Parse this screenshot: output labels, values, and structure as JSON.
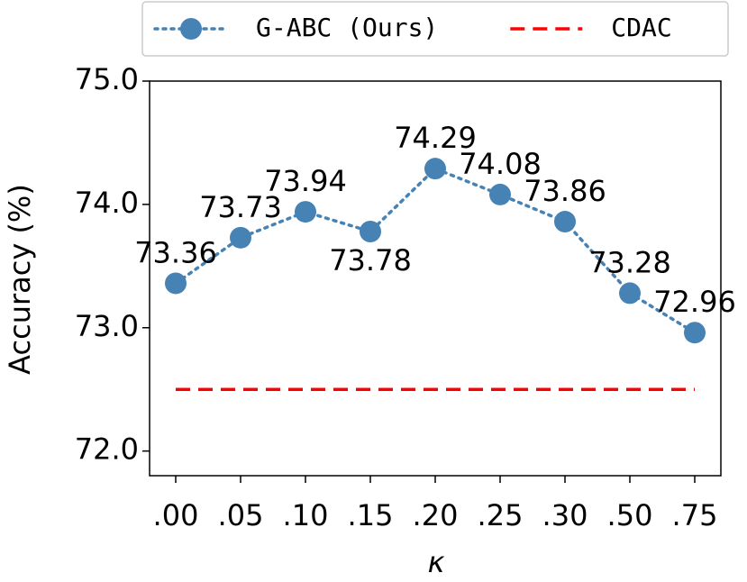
{
  "chart_data": {
    "type": "line",
    "xlabel": "κ",
    "ylabel": "Accuracy (%)",
    "categories": [
      ".00",
      ".05",
      ".10",
      ".15",
      ".20",
      ".25",
      ".30",
      ".50",
      ".75"
    ],
    "series": [
      {
        "name": "G-ABC (Ours)",
        "color": "#4682b4",
        "style": "dotted",
        "marker": true,
        "data_labels": true,
        "values": [
          73.36,
          73.73,
          73.94,
          73.78,
          74.29,
          74.08,
          73.86,
          73.28,
          72.96
        ]
      },
      {
        "name": "CDAC",
        "color": "#ff0000",
        "style": "dashed",
        "marker": false,
        "data_labels": false,
        "values": [
          72.5,
          72.5,
          72.5,
          72.5,
          72.5,
          72.5,
          72.5,
          72.5,
          72.5
        ]
      }
    ],
    "ylim": [
      71.8,
      75.0
    ],
    "yticks": [
      {
        "value": 72,
        "label": "72.0"
      },
      {
        "value": 73,
        "label": "73.0"
      },
      {
        "value": 74,
        "label": "74.0"
      },
      {
        "value": 75,
        "label": "75.0"
      }
    ],
    "grid": false,
    "legend": "top"
  }
}
